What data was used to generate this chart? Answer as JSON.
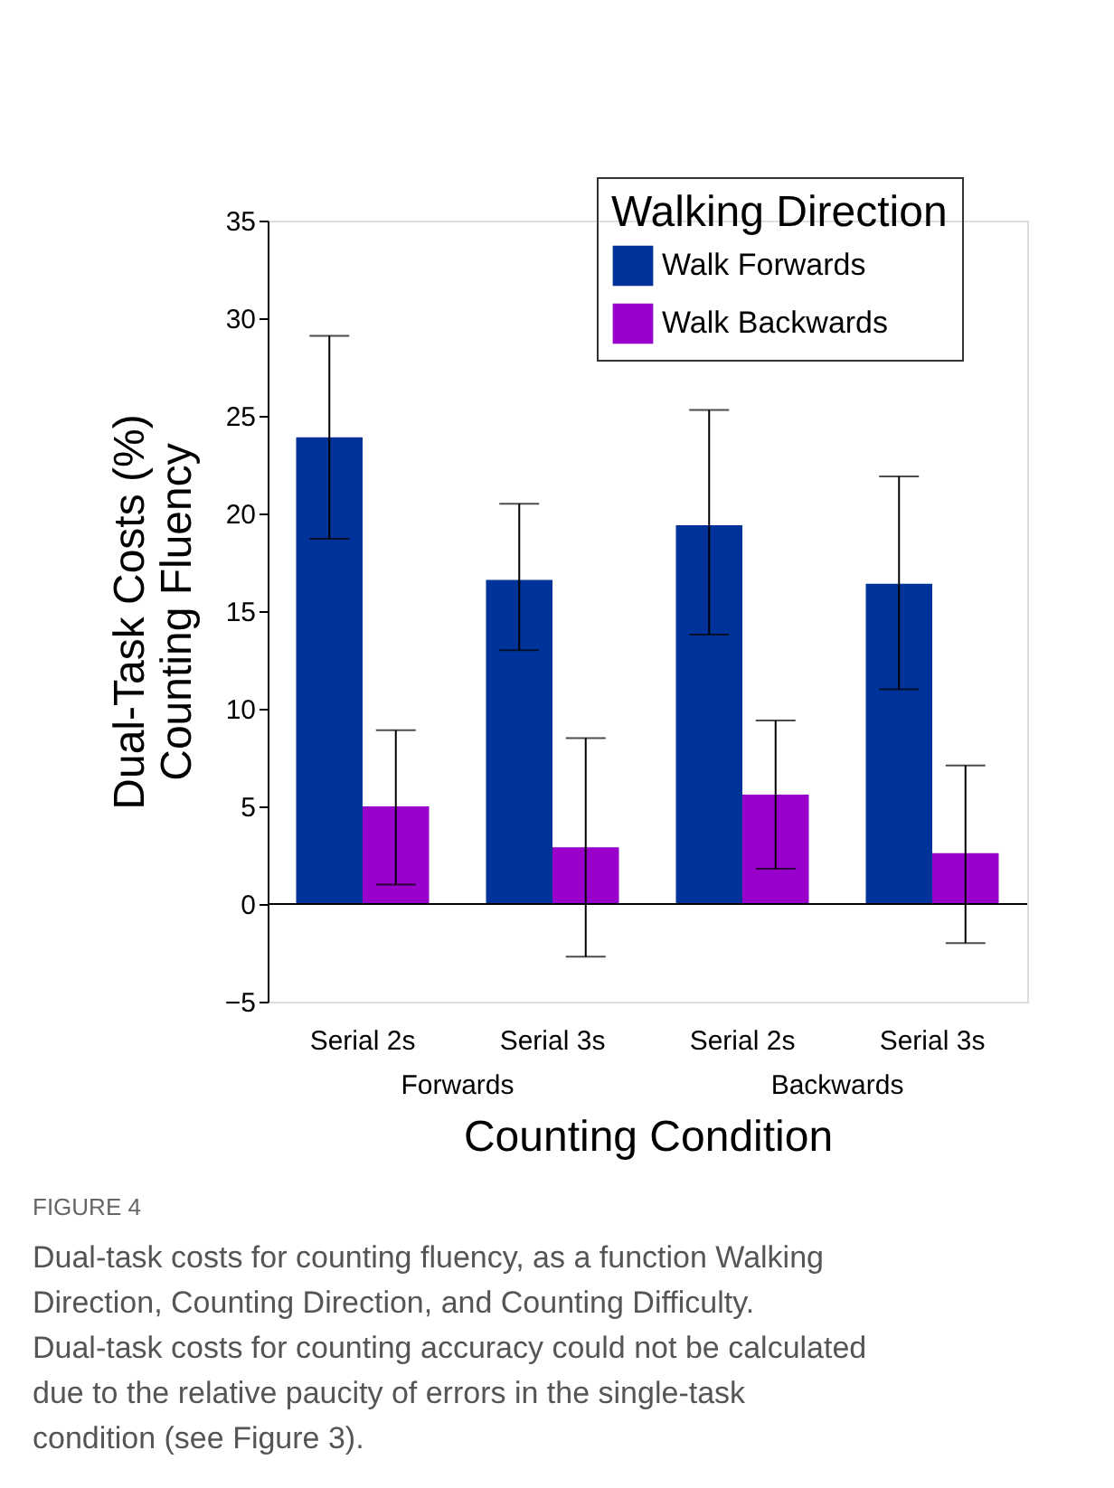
{
  "chart_data": {
    "type": "bar",
    "xlabel": "Counting Condition",
    "ylabel": "Dual-Task Costs (%)\nCounting Fluency",
    "legend_title": "Walking Direction",
    "legend": "top right",
    "grid": false,
    "categories": [
      "Serial 2s",
      "Serial 3s",
      "Serial 2s",
      "Serial 3s"
    ],
    "series": [
      {
        "name": "Walk Forwards",
        "color": "#003399",
        "values": [
          23.9,
          16.6,
          19.4,
          16.4
        ],
        "errors": [
          [
            18.7,
            29.1
          ],
          [
            13.0,
            20.5
          ],
          [
            13.8,
            25.3
          ],
          [
            11.0,
            21.9
          ]
        ]
      },
      {
        "name": "Walk Backwards",
        "color": "#9900cc",
        "values": [
          5.0,
          2.9,
          5.6,
          2.6
        ],
        "errors": [
          [
            1.0,
            8.9
          ],
          [
            -2.7,
            8.5
          ],
          [
            1.8,
            9.4
          ],
          [
            -2.0,
            7.1
          ]
        ]
      }
    ],
    "ylim": [
      -5,
      35
    ],
    "yticks": [
      -5,
      0,
      5,
      10,
      15,
      20,
      25,
      30,
      35
    ],
    "ref_lines": [
      {
        "axis": "y",
        "value": 0
      }
    ],
    "annotations": [
      "Forwards",
      "Backwards",
      "FIGURE 4",
      "Dual-task costs for counting fluency, as a function Walking Direction, Counting Direction, and Counting Difficulty. Dual-task costs for counting accuracy could not be calculated due to the relative paucity of errors in the single-task condition (see Figure 3)."
    ]
  }
}
